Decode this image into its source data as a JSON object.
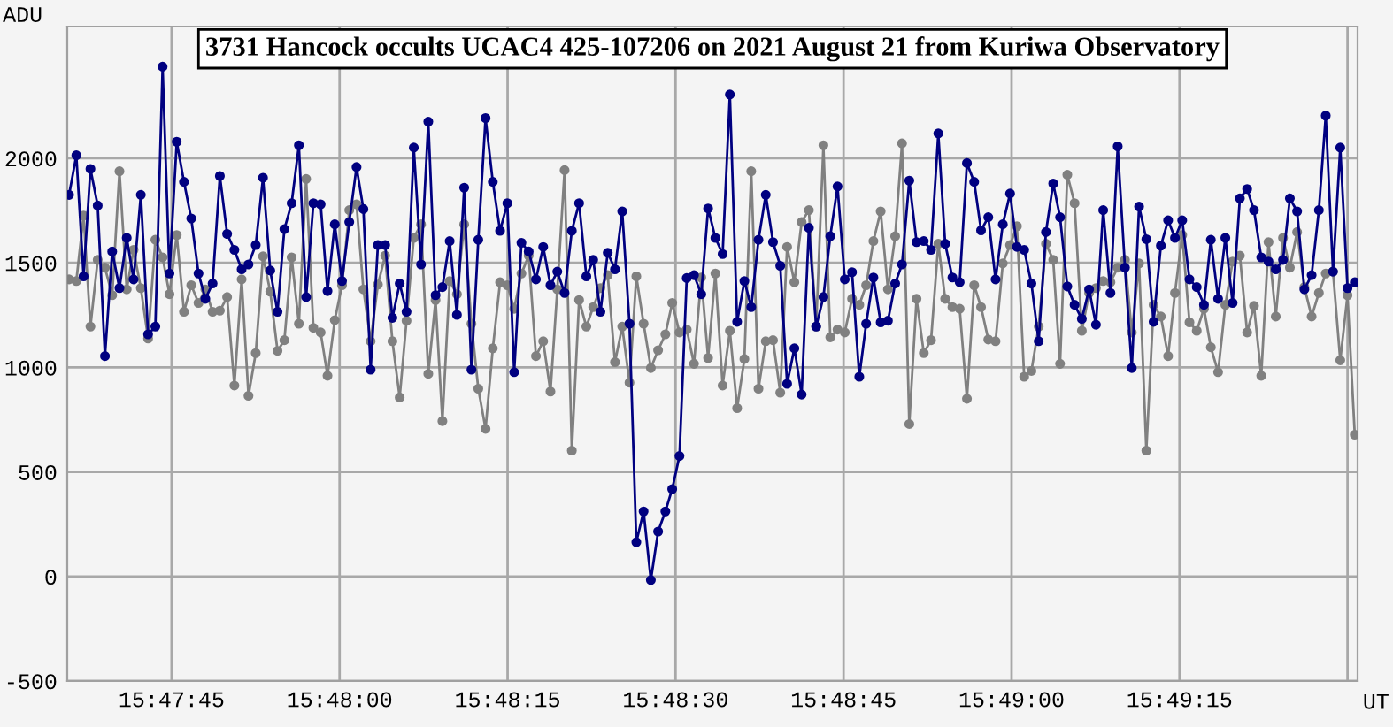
{
  "chart_data": {
    "type": "line",
    "title": "3731 Hancock occults UCAC4 425-107206 on 2021 August 21 from Kuriwa Observatory",
    "xlabel": "UT",
    "ylabel": "ADU",
    "x": [
      15.79329,
      15.79347,
      15.79365,
      15.79382,
      15.794,
      15.79418,
      15.79436,
      15.79454,
      15.79472,
      15.79489,
      15.79507,
      15.79525,
      15.79543,
      15.79561,
      15.79578,
      15.79596,
      15.79614,
      15.79632,
      15.7965,
      15.79667,
      15.79685,
      15.79703,
      15.79721,
      15.79739,
      15.79757,
      15.79774,
      15.79792,
      15.7981,
      15.79828,
      15.79846,
      15.79863,
      15.79881,
      15.79899,
      15.79917,
      15.79935,
      15.79953,
      15.7997,
      15.79988,
      15.80006,
      15.80024,
      15.80042,
      15.80059,
      15.80077,
      15.80095,
      15.80113,
      15.80131,
      15.80149,
      15.80166,
      15.80184,
      15.80202,
      15.8022,
      15.80238,
      15.80255,
      15.80273,
      15.80291,
      15.80309,
      15.80327,
      15.80344,
      15.80362,
      15.8038,
      15.80398,
      15.80416,
      15.80433,
      15.80451,
      15.80469,
      15.80487,
      15.80505,
      15.80523,
      15.8054,
      15.80558,
      15.80576,
      15.80594,
      15.80612,
      15.80629,
      15.80647,
      15.80665,
      15.80683,
      15.80701,
      15.80719,
      15.80736,
      15.80754,
      15.80772,
      15.8079,
      15.80808,
      15.80825,
      15.80843,
      15.80861,
      15.80879,
      15.80897,
      15.80914,
      15.80932,
      15.8095,
      15.80968,
      15.80986,
      15.81004,
      15.81021,
      15.81039,
      15.81057,
      15.81075,
      15.81093,
      15.8111,
      15.81128,
      15.81146,
      15.81164,
      15.81182,
      15.812,
      15.81217,
      15.81235,
      15.81253,
      15.81271,
      15.81289,
      15.81306,
      15.81324,
      15.81342,
      15.8136,
      15.81378,
      15.81395,
      15.81413,
      15.81431,
      15.81449,
      15.81467,
      15.81485,
      15.81502,
      15.8152,
      15.81538,
      15.81556,
      15.81574,
      15.81591,
      15.81609,
      15.81627,
      15.81645,
      15.81663,
      15.8168,
      15.81698,
      15.81716,
      15.81734,
      15.81752,
      15.8177,
      15.81787,
      15.81805,
      15.81823,
      15.81841,
      15.81859,
      15.81876,
      15.81894,
      15.81912,
      15.8193,
      15.81948,
      15.81965,
      15.81983,
      15.82001,
      15.82019,
      15.82037,
      15.82055,
      15.82072,
      15.8209,
      15.82108,
      15.82126,
      15.82144,
      15.82161,
      15.82179,
      15.82197,
      15.82215,
      15.82233,
      15.82251,
      15.82268,
      15.82286,
      15.82304,
      15.82322,
      15.8234,
      15.82357,
      15.82375,
      15.82393,
      15.82411,
      15.82429,
      15.82446,
      15.82464,
      15.82482,
      15.825,
      15.82518
    ],
    "series": [
      {
        "color": "#808080",
        "values": [
          1421,
          1413,
          1726,
          1195,
          1514,
          1477,
          1345,
          1938,
          1373,
          1562,
          1379,
          1138,
          1610,
          1526,
          1350,
          1633,
          1266,
          1393,
          1308,
          1373,
          1266,
          1271,
          1336,
          913,
          1421,
          864,
          1068,
          1531,
          1362,
          1079,
          1130,
          1526,
          1209,
          1901,
          1189,
          1167,
          960,
          1226,
          1393,
          1752,
          1780,
          1373,
          1125,
          1396,
          1534,
          1125,
          856,
          1223,
          1619,
          1684,
          969,
          1322,
          743,
          1413,
          1350,
          1684,
          1209,
          898,
          706,
          1091,
          1407,
          1393,
          1280,
          1449,
          1534,
          1054,
          1125,
          884,
          1373,
          1943,
          602,
          1322,
          1195,
          1288,
          1379,
          1441,
          1025,
          1195,
          927,
          1435,
          1209,
          997,
          1082,
          1158,
          1308,
          1167,
          1181,
          1017,
          1430,
          1045,
          1449,
          913,
          1175,
          805,
          1040,
          1938,
          898,
          1125,
          1130,
          879,
          1576,
          1407,
          1695,
          1752,
          1195,
          2062,
          1144,
          1181,
          1167,
          1328,
          1299,
          1393,
          1604,
          1746,
          1373,
          1627,
          2071,
          729,
          1328,
          1068,
          1130,
          1591,
          1328,
          1288,
          1280,
          850,
          1393,
          1288,
          1133,
          1125,
          1497,
          1585,
          1675,
          955,
          983,
          1195,
          1591,
          1514,
          1017,
          1921,
          1785,
          1175,
          1356,
          1379,
          1413,
          1407,
          1477,
          1514,
          1167,
          1497,
          602,
          1299,
          1243,
          1054,
          1356,
          1633,
          1215,
          1175,
          1280,
          1096,
          977,
          1299,
          1506,
          1534,
          1167,
          1294,
          960,
          1599,
          1243,
          1619,
          1477,
          1647,
          1384,
          1243,
          1356,
          1449,
          1458,
          1034,
          1345,
          678
        ]
      },
      {
        "color": "#000080",
        "values": [
          1825,
          2014,
          1435,
          1949,
          1774,
          1054,
          1554,
          1379,
          1619,
          1421,
          1825,
          1158,
          1195,
          2438,
          1449,
          2079,
          1887,
          1712,
          1449,
          1328,
          1401,
          1915,
          1638,
          1562,
          1469,
          1492,
          1585,
          1907,
          1463,
          1266,
          1661,
          1785,
          2062,
          1336,
          1785,
          1780,
          1365,
          1684,
          1413,
          1695,
          1958,
          1757,
          989,
          1585,
          1585,
          1237,
          1401,
          1266,
          2051,
          1492,
          2175,
          1345,
          1384,
          1604,
          1251,
          1859,
          989,
          1610,
          2192,
          1887,
          1653,
          1785,
          977,
          1596,
          1554,
          1421,
          1576,
          1393,
          1458,
          1356,
          1653,
          1785,
          1435,
          1514,
          1266,
          1548,
          1469,
          1746,
          1209,
          164,
          311,
          -17,
          215,
          311,
          418,
          576,
          1427,
          1441,
          1350,
          1760,
          1619,
          1542,
          2305,
          1218,
          1413,
          1288,
          1610,
          1825,
          1599,
          1486,
          921,
          1091,
          870,
          1667,
          1195,
          1336,
          1627,
          1865,
          1421,
          1455,
          955,
          1209,
          1430,
          1215,
          1223,
          1401,
          1492,
          1893,
          1599,
          1604,
          1562,
          2119,
          1591,
          1430,
          1407,
          1977,
          1887,
          1655,
          1718,
          1421,
          1684,
          1831,
          1576,
          1562,
          1401,
          1125,
          1647,
          1879,
          1718,
          1387,
          1299,
          1232,
          1373,
          1204,
          1752,
          1356,
          2057,
          1477,
          997,
          1769,
          1613,
          1218,
          1582,
          1703,
          1619,
          1703,
          1421,
          1384,
          1299,
          1610,
          1328,
          1619,
          1308,
          1808,
          1853,
          1752,
          1526,
          1506,
          1469,
          1514,
          1808,
          1746,
          1373,
          1441,
          1752,
          2204,
          1458,
          2051,
          1379,
          1407
        ]
      }
    ],
    "xlim": [
      15.793245,
      15.82525
    ],
    "xticks": [
      {
        "value": 15.795833,
        "label": "15:47:45"
      },
      {
        "value": 15.8,
        "label": "15:48:00"
      },
      {
        "value": 15.804167,
        "label": "15:48:15"
      },
      {
        "value": 15.808333,
        "label": "15:48:30"
      },
      {
        "value": 15.8125,
        "label": "15:48:45"
      },
      {
        "value": 15.816667,
        "label": "15:49:00"
      },
      {
        "value": 15.820833,
        "label": "15:49:15"
      },
      {
        "value": 15.825,
        "label": null
      }
    ],
    "ylim": [
      -500,
      2630
    ],
    "yticks": [
      -500,
      0,
      500,
      1000,
      1500,
      2000
    ],
    "grid": true,
    "legend": false,
    "marker": "circle",
    "line_style": "solid"
  }
}
